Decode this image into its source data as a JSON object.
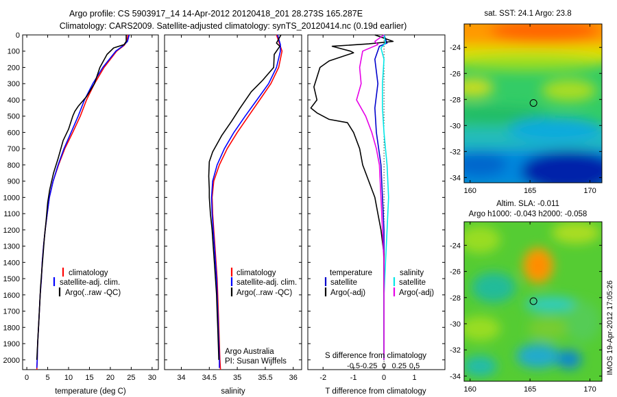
{
  "figure": {
    "title_line1": "Argo profile: CS 5903917_14 14-Apr-2012 20120418_201 28.273S 165.287E",
    "title_line2": "Climatology: CARS2009. Satellite-adjusted climatology: synTS_20120414.nc (0.19d earlier)",
    "credit_line1": "Argo Australia",
    "credit_line2": "PI: Susan Wijffels",
    "stamp": "IMOS 19-Apr-2012 17:05:26"
  },
  "colors": {
    "clim": "#ff0000",
    "sat": "#0000ff",
    "argo": "#000000",
    "temp_sat": "#0000cc",
    "sal_sat": "#00e6e6",
    "sal_argo": "#e600e6"
  },
  "chart_data": [
    {
      "id": "temperature",
      "type": "line",
      "xlabel": "temperature (deg C)",
      "ylabel": "",
      "xlim": [
        -1,
        31.5
      ],
      "ylim": [
        0,
        2060
      ],
      "y_reversed": true,
      "xticks": [
        0,
        5,
        10,
        15,
        20,
        25,
        30
      ],
      "yticks": [
        0,
        100,
        200,
        300,
        400,
        500,
        600,
        700,
        800,
        900,
        1000,
        1100,
        1200,
        1300,
        1400,
        1500,
        1600,
        1700,
        1800,
        1900,
        2000
      ],
      "legend": [
        "climatology",
        "satellite-adj. clim.",
        "Argo(..raw -QC)"
      ],
      "legend_location": "lower-center",
      "series": [
        {
          "name": "climatology",
          "color": "clim",
          "points": [
            [
              24.2,
              0
            ],
            [
              24,
              40
            ],
            [
              23.3,
              65
            ],
            [
              21.5,
              100
            ],
            [
              18.5,
              200
            ],
            [
              16.2,
              300
            ],
            [
              14.3,
              400
            ],
            [
              12.8,
              500
            ],
            [
              11,
              600
            ],
            [
              9.1,
              700
            ],
            [
              7.6,
              800
            ],
            [
              6.3,
              900
            ],
            [
              5.4,
              1000
            ],
            [
              4.9,
              1100
            ],
            [
              4.4,
              1200
            ],
            [
              4,
              1300
            ],
            [
              3.7,
              1400
            ],
            [
              3.5,
              1500
            ],
            [
              3.2,
              1600
            ],
            [
              3,
              1700
            ],
            [
              2.8,
              1800
            ],
            [
              2.6,
              1900
            ],
            [
              2.5,
              2000
            ],
            [
              2.4,
              2060
            ]
          ]
        },
        {
          "name": "satellite-adj. clim.",
          "color": "sat",
          "points": [
            [
              24.5,
              0
            ],
            [
              24.1,
              40
            ],
            [
              23,
              68
            ],
            [
              21.3,
              100
            ],
            [
              18.2,
              200
            ],
            [
              15.8,
              300
            ],
            [
              13.8,
              400
            ],
            [
              12.3,
              500
            ],
            [
              10.6,
              600
            ],
            [
              8.9,
              700
            ],
            [
              7.5,
              800
            ],
            [
              6.3,
              900
            ],
            [
              5.4,
              1000
            ],
            [
              4.9,
              1100
            ],
            [
              4.4,
              1200
            ],
            [
              4,
              1300
            ],
            [
              3.7,
              1400
            ],
            [
              3.5,
              1500
            ],
            [
              3.2,
              1600
            ],
            [
              3,
              1700
            ],
            [
              2.8,
              1800
            ],
            [
              2.6,
              1900
            ],
            [
              2.5,
              2000
            ],
            [
              2.4,
              2050
            ]
          ]
        },
        {
          "name": "Argo(..raw -QC)",
          "color": "argo",
          "points": [
            [
              23.8,
              0
            ],
            [
              23.8,
              40
            ],
            [
              23.3,
              60
            ],
            [
              20.8,
              80
            ],
            [
              19.2,
              120
            ],
            [
              17.5,
              200
            ],
            [
              16.2,
              300
            ],
            [
              14.3,
              380
            ],
            [
              12.3,
              440
            ],
            [
              11.5,
              470
            ],
            [
              11,
              500
            ],
            [
              10,
              580
            ],
            [
              8.7,
              650
            ],
            [
              7.5,
              760
            ],
            [
              6.4,
              850
            ],
            [
              5.5,
              950
            ],
            [
              5,
              1030
            ],
            [
              4.6,
              1150
            ],
            [
              4.2,
              1250
            ],
            [
              3.9,
              1350
            ],
            [
              3.6,
              1450
            ],
            [
              3.3,
              1550
            ],
            [
              3.1,
              1650
            ],
            [
              2.9,
              1750
            ],
            [
              2.7,
              1850
            ],
            [
              2.5,
              1950
            ],
            [
              2.4,
              2000
            ]
          ]
        }
      ]
    },
    {
      "id": "salinity",
      "type": "line",
      "xlabel": "salinity",
      "ylabel": "",
      "xlim": [
        33.7,
        36.15
      ],
      "ylim": [
        0,
        2060
      ],
      "y_reversed": true,
      "xticks": [
        34,
        34.5,
        35,
        35.5,
        36
      ],
      "legend": [
        "climatology",
        "satellite-adj. clim.",
        "Argo(..raw -QC)"
      ],
      "legend_location": "lower-center",
      "series": [
        {
          "name": "climatology",
          "color": "clim",
          "points": [
            [
              35.7,
              0
            ],
            [
              35.76,
              60
            ],
            [
              35.8,
              100
            ],
            [
              35.74,
              200
            ],
            [
              35.6,
              300
            ],
            [
              35.4,
              400
            ],
            [
              35.2,
              500
            ],
            [
              35,
              600
            ],
            [
              34.82,
              700
            ],
            [
              34.68,
              800
            ],
            [
              34.58,
              900
            ],
            [
              34.55,
              1000
            ],
            [
              34.56,
              1100
            ],
            [
              34.58,
              1200
            ],
            [
              34.6,
              1300
            ],
            [
              34.62,
              1400
            ],
            [
              34.64,
              1500
            ],
            [
              34.65,
              1600
            ],
            [
              34.66,
              1700
            ],
            [
              34.67,
              1800
            ],
            [
              34.68,
              1900
            ],
            [
              34.69,
              2000
            ],
            [
              34.7,
              2060
            ]
          ]
        },
        {
          "name": "satellite-adj. clim.",
          "color": "sat",
          "points": [
            [
              35.72,
              0
            ],
            [
              35.77,
              60
            ],
            [
              35.77,
              100
            ],
            [
              35.7,
              200
            ],
            [
              35.56,
              300
            ],
            [
              35.35,
              400
            ],
            [
              35.14,
              500
            ],
            [
              34.94,
              600
            ],
            [
              34.77,
              700
            ],
            [
              34.64,
              800
            ],
            [
              34.56,
              900
            ],
            [
              34.54,
              1000
            ],
            [
              34.55,
              1100
            ],
            [
              34.57,
              1200
            ],
            [
              34.59,
              1300
            ],
            [
              34.61,
              1400
            ],
            [
              34.63,
              1500
            ],
            [
              34.64,
              1600
            ],
            [
              34.65,
              1700
            ],
            [
              34.66,
              1800
            ],
            [
              34.67,
              1900
            ],
            [
              34.68,
              2000
            ],
            [
              34.68,
              2050
            ]
          ]
        },
        {
          "name": "Argo(..raw -QC)",
          "color": "argo",
          "points": [
            [
              35.78,
              0
            ],
            [
              35.7,
              50
            ],
            [
              35.76,
              70
            ],
            [
              35.66,
              120
            ],
            [
              35.65,
              200
            ],
            [
              35.45,
              280
            ],
            [
              35.25,
              350
            ],
            [
              35.05,
              450
            ],
            [
              34.9,
              530
            ],
            [
              34.72,
              620
            ],
            [
              34.56,
              720
            ],
            [
              34.5,
              780
            ],
            [
              34.49,
              870
            ],
            [
              34.5,
              950
            ],
            [
              34.5,
              1000
            ],
            [
              34.52,
              1100
            ],
            [
              34.55,
              1200
            ],
            [
              34.57,
              1300
            ],
            [
              34.59,
              1400
            ],
            [
              34.61,
              1500
            ],
            [
              34.63,
              1600
            ],
            [
              34.64,
              1700
            ],
            [
              34.65,
              1800
            ],
            [
              34.66,
              1900
            ],
            [
              34.67,
              2000
            ]
          ]
        }
      ]
    },
    {
      "id": "differences",
      "type": "line",
      "xlabel": "T difference from climatology",
      "top_xlabel": "S difference from climatology",
      "xlim": [
        -2.5,
        2.0
      ],
      "ylim": [
        0,
        2060
      ],
      "y_reversed": true,
      "xticks": [
        -2,
        -1,
        0,
        1
      ],
      "xtick_labels": [
        "-2",
        "-1",
        "0",
        "1"
      ],
      "s_ticks": [
        -0.5,
        -0.25,
        0,
        0.25,
        0.5
      ],
      "s_tick_labels": [
        "-0.5",
        "-0.25",
        "0",
        "0.25",
        "0.5"
      ],
      "legend_temperature": {
        "title": "temperature",
        "items": [
          "satellite",
          "Argo(-adj)"
        ]
      },
      "legend_salinity": {
        "title": "salinity",
        "items": [
          "satellite",
          "Argo(-adj)"
        ]
      },
      "zero_line": "dotted",
      "series": [
        {
          "name": "temperature satellite",
          "color": "temp_sat",
          "points": [
            [
              0,
              0
            ],
            [
              0.1,
              50
            ],
            [
              -0.15,
              70
            ],
            [
              -0.3,
              150
            ],
            [
              -0.2,
              300
            ],
            [
              -0.3,
              450
            ],
            [
              -0.25,
              600
            ],
            [
              -0.1,
              800
            ],
            [
              -0.05,
              1000
            ],
            [
              0,
              1200
            ],
            [
              0,
              1400
            ],
            [
              0,
              1600
            ],
            [
              0,
              1800
            ],
            [
              0,
              2000
            ]
          ]
        },
        {
          "name": "temperature Argo(-adj)",
          "color": "argo",
          "points": [
            [
              -0.3,
              0
            ],
            [
              0.3,
              40
            ],
            [
              -0.5,
              55
            ],
            [
              -1.7,
              70
            ],
            [
              -1.3,
              90
            ],
            [
              -1.1,
              100
            ],
            [
              -1,
              110
            ],
            [
              -1.8,
              160
            ],
            [
              -2.1,
              200
            ],
            [
              -2.3,
              320
            ],
            [
              -2.2,
              400
            ],
            [
              -2.4,
              450
            ],
            [
              -2.2,
              480
            ],
            [
              -1.8,
              520
            ],
            [
              -1.2,
              540
            ],
            [
              -1,
              600
            ],
            [
              -0.8,
              700
            ],
            [
              -0.7,
              800
            ],
            [
              -0.5,
              900
            ],
            [
              -0.3,
              1000
            ],
            [
              -0.2,
              1100
            ],
            [
              -0.1,
              1200
            ],
            [
              0,
              1350
            ],
            [
              0,
              1500
            ],
            [
              0,
              1700
            ],
            [
              0,
              1900
            ],
            [
              0,
              2000
            ]
          ]
        },
        {
          "name": "salinity satellite",
          "color": "sal_sat",
          "points": [
            [
              0,
              0
            ],
            [
              0.05,
              50
            ],
            [
              -0.1,
              80
            ],
            [
              0,
              150
            ],
            [
              -0.05,
              300
            ],
            [
              -0.05,
              450
            ],
            [
              0,
              600
            ],
            [
              0.05,
              700
            ],
            [
              0.1,
              800
            ],
            [
              0.15,
              1000
            ],
            [
              0.1,
              1200
            ],
            [
              0.05,
              1400
            ],
            [
              0,
              1600
            ],
            [
              0,
              1800
            ],
            [
              0,
              2000
            ]
          ]
        },
        {
          "name": "salinity Argo(-adj)",
          "color": "sal_argo",
          "points": [
            [
              0,
              0
            ],
            [
              -0.3,
              40
            ],
            [
              -0.2,
              60
            ],
            [
              -0.7,
              100
            ],
            [
              -0.8,
              200
            ],
            [
              -0.75,
              300
            ],
            [
              -0.9,
              400
            ],
            [
              -0.6,
              500
            ],
            [
              -0.4,
              600
            ],
            [
              -0.25,
              700
            ],
            [
              -0.15,
              800
            ],
            [
              -0.1,
              1000
            ],
            [
              -0.05,
              1200
            ],
            [
              0,
              1400
            ],
            [
              0,
              1600
            ],
            [
              0,
              1800
            ],
            [
              0,
              2000
            ]
          ]
        }
      ]
    },
    {
      "id": "sst-map",
      "type": "heatmap",
      "title": "sat. SST: 24.1  Argo: 23.8",
      "xlim": [
        159.5,
        171
      ],
      "ylim": [
        -34.4,
        -22.2
      ],
      "xticks": [
        160,
        165,
        170
      ],
      "yticks": [
        -24,
        -26,
        -28,
        -30,
        -32,
        -34
      ],
      "ytick_labels": [
        "-24",
        "-26",
        "-28",
        "-30",
        "-32",
        "-34"
      ],
      "float_position": [
        165.287,
        -28.273
      ]
    },
    {
      "id": "sla-map",
      "type": "heatmap",
      "title": "Altim. SLA: -0.011",
      "subtitle": "Argo h1000: -0.043  h2000: -0.058",
      "xlim": [
        159.5,
        171
      ],
      "ylim": [
        -34.4,
        -22.2
      ],
      "xticks": [
        160,
        165,
        170
      ],
      "yticks": [
        -24,
        -26,
        -28,
        -30,
        -32,
        -34
      ],
      "ytick_labels": [
        "-24",
        "-26",
        "-28",
        "-30",
        "-32",
        "-34"
      ],
      "float_position": [
        165.287,
        -28.273
      ]
    }
  ]
}
